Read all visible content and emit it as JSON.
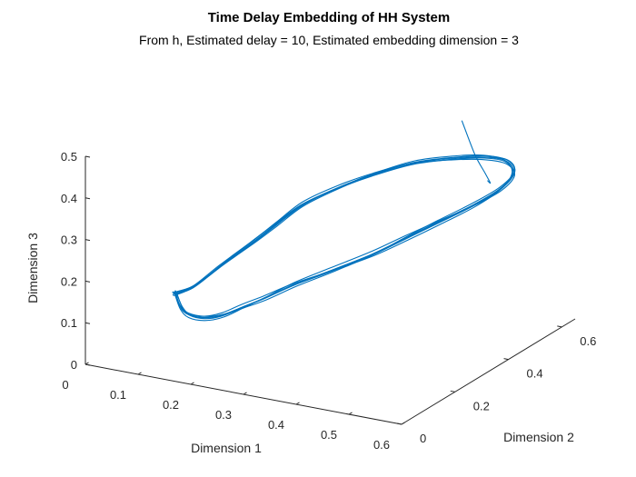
{
  "chart_data": {
    "type": "line",
    "projection": "3d",
    "title": "Time Delay Embedding of HH System",
    "subtitle": "From h, Estimated delay = 10, Estimated embedding dimension = 3",
    "xlabel": "Dimension 1",
    "ylabel": "Dimension 2",
    "zlabel": "Dimension 3",
    "xlim": [
      0,
      0.6
    ],
    "ylim": [
      0,
      0.65
    ],
    "zlim": [
      0,
      0.5
    ],
    "x_ticks": [
      "0",
      "0.1",
      "0.2",
      "0.3",
      "0.4",
      "0.5",
      "0.6"
    ],
    "y_ticks": [
      "0",
      "0.2",
      "0.4",
      "0.6"
    ],
    "z_ticks": [
      "0",
      "0.1",
      "0.2",
      "0.3",
      "0.4",
      "0.5"
    ],
    "grid": false,
    "color": "#0072BD",
    "series": [
      {
        "loop": {
          "x": [
            0.1,
            0.12,
            0.14,
            0.17,
            0.2,
            0.23,
            0.26,
            0.3,
            0.35,
            0.4,
            0.44,
            0.48,
            0.52,
            0.55,
            0.56,
            0.55,
            0.53,
            0.5,
            0.45,
            0.4,
            0.35,
            0.3,
            0.26,
            0.22,
            0.17,
            0.13,
            0.1
          ],
          "y": [
            0.14,
            0.12,
            0.11,
            0.11,
            0.12,
            0.14,
            0.16,
            0.19,
            0.23,
            0.28,
            0.33,
            0.38,
            0.43,
            0.47,
            0.5,
            0.49,
            0.45,
            0.4,
            0.34,
            0.29,
            0.25,
            0.22,
            0.2,
            0.19,
            0.17,
            0.15,
            0.14
          ],
          "z": [
            0.14,
            0.12,
            0.11,
            0.11,
            0.12,
            0.14,
            0.16,
            0.19,
            0.22,
            0.25,
            0.28,
            0.31,
            0.34,
            0.37,
            0.4,
            0.43,
            0.45,
            0.46,
            0.46,
            0.44,
            0.41,
            0.37,
            0.32,
            0.27,
            0.21,
            0.16,
            0.14
          ]
        },
        "tail": {
          "x": [
            0.54,
            0.52,
            0.48,
            0.43,
            0.38
          ],
          "y": [
            0.44,
            0.49,
            0.55,
            0.61,
            0.66
          ],
          "z": [
            0.4,
            0.37,
            0.36,
            0.37,
            0.42
          ]
        }
      }
    ]
  }
}
